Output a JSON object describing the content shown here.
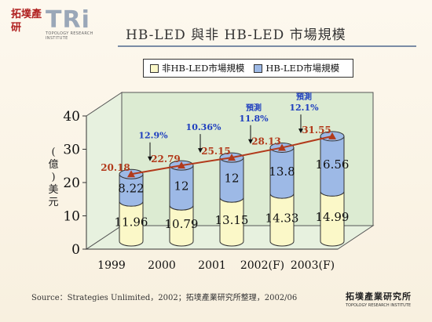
{
  "header": {
    "logo_cn": "拓墣產研",
    "logo_mark": "TRi",
    "logo_subtitle": "TOPOLOGY RESEARCH INSTITUTE",
    "title": "HB-LED 與非 HB-LED 市場規模"
  },
  "footer": {
    "source": "Source：Strategies Unlimited，2002；拓墣產業研究所整理，2002/06",
    "logo_cn": "拓墣產業研究所",
    "logo_en": "TOPOLOGY RESEARCH INSTITUTE"
  },
  "chart_data": {
    "type": "bar",
    "stacked": true,
    "categories": [
      "1999",
      "2000",
      "2001",
      "2002(F)",
      "2003(F)"
    ],
    "series": [
      {
        "name": "非HB-LED市場規模",
        "values": [
          11.96,
          10.79,
          13.15,
          14.33,
          14.99
        ],
        "color": "#fbf8c8"
      },
      {
        "name": "HB-LED市場規模",
        "values": [
          8.22,
          12,
          12,
          13.8,
          16.56
        ],
        "color": "#9db9e6"
      }
    ],
    "totals": [
      20.18,
      22.79,
      25.15,
      28.13,
      31.55
    ],
    "total_line_color": "#b23a1b",
    "growth_annotations": [
      {
        "between": [
          "1999",
          "2000"
        ],
        "label": "12.9%",
        "prefix": ""
      },
      {
        "between": [
          "2000",
          "2001"
        ],
        "label": "10.36%",
        "prefix": ""
      },
      {
        "between": [
          "2001",
          "2002(F)"
        ],
        "label": "11.8%",
        "prefix": "預測"
      },
      {
        "between": [
          "2002(F)",
          "2003(F)"
        ],
        "label": "12.1%",
        "prefix": "預測"
      }
    ],
    "ylabel": "(億)美元",
    "ylim": [
      0,
      40
    ],
    "yticks": [
      0,
      10,
      20,
      30,
      40
    ],
    "legend_position": "top",
    "grid": false
  }
}
